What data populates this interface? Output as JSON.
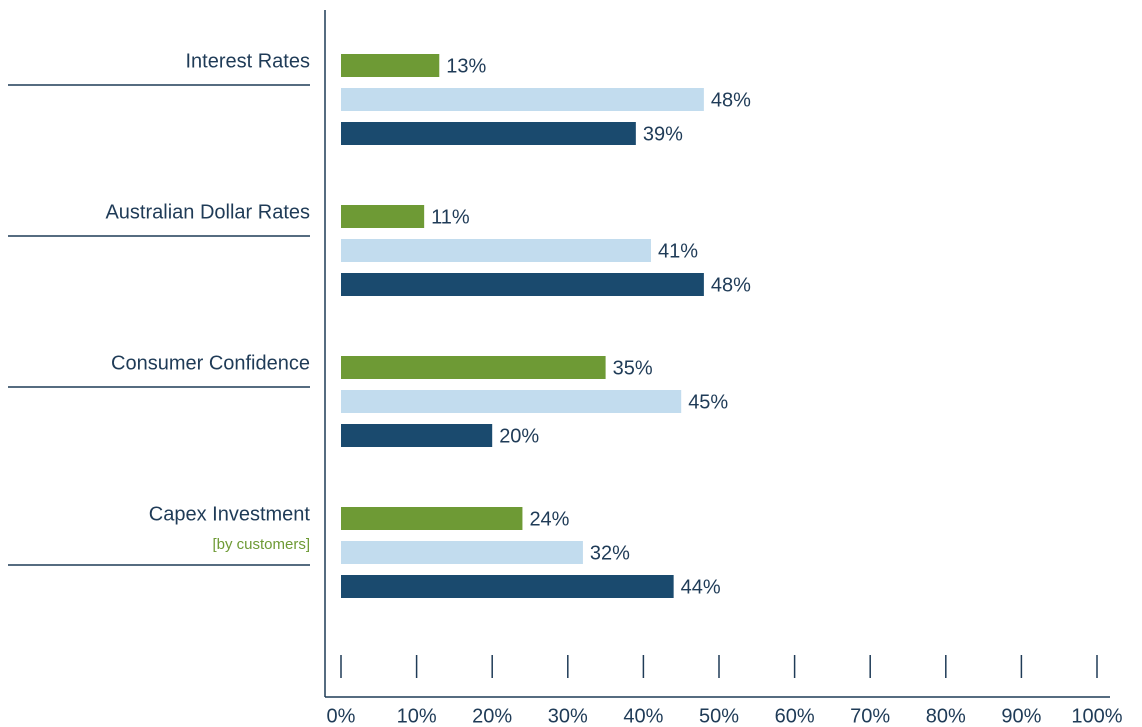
{
  "chart_data": {
    "type": "bar",
    "orientation": "horizontal",
    "categories": [
      "Interest Rates",
      "Australian Dollar Rates",
      "Consumer Confidence",
      "Capex Investment"
    ],
    "category_subtitles": [
      null,
      null,
      null,
      "[by customers]"
    ],
    "series": [
      {
        "color": "#6e9a35",
        "values": [
          13,
          11,
          35,
          24
        ],
        "value_labels": [
          "13%",
          "11%",
          "35%",
          "24%"
        ]
      },
      {
        "color": "#c2dcee",
        "values": [
          48,
          41,
          45,
          32
        ],
        "value_labels": [
          "48%",
          "41%",
          "45%",
          "32%"
        ]
      },
      {
        "color": "#1a4a6e",
        "values": [
          39,
          48,
          20,
          44
        ],
        "value_labels": [
          "39%",
          "48%",
          "20%",
          "44%"
        ]
      }
    ],
    "xlim": [
      0,
      100
    ],
    "xticks": [
      {
        "value": 0,
        "label": "0%"
      },
      {
        "value": 10,
        "label": "10%"
      },
      {
        "value": 20,
        "label": "20%"
      },
      {
        "value": 30,
        "label": "30%"
      },
      {
        "value": 40,
        "label": "40%"
      },
      {
        "value": 50,
        "label": "50%"
      },
      {
        "value": 60,
        "label": "60%"
      },
      {
        "value": 70,
        "label": "70%"
      },
      {
        "value": 80,
        "label": "80%"
      },
      {
        "value": 90,
        "label": "90%"
      },
      {
        "value": 100,
        "label": "100%"
      }
    ]
  }
}
